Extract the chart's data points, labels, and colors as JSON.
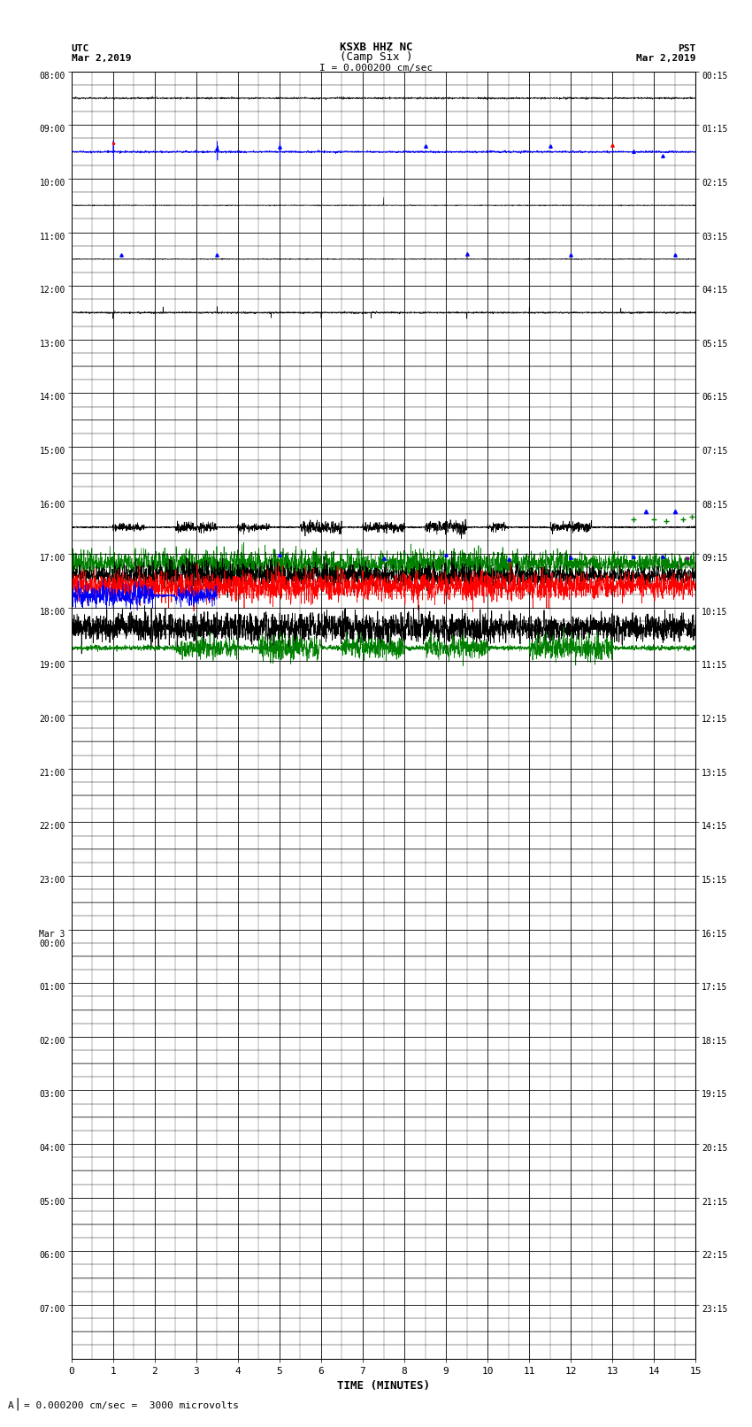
{
  "title_line1": "KSXB HHZ NC",
  "title_line2": "(Camp Six )",
  "scale_label": "I = 0.000200 cm/sec",
  "xlabel": "TIME (MINUTES)",
  "footer": "= 0.000200 cm/sec =  3000 microvolts",
  "left_times": [
    "08:00",
    "09:00",
    "10:00",
    "11:00",
    "12:00",
    "13:00",
    "14:00",
    "15:00",
    "16:00",
    "17:00",
    "18:00",
    "19:00",
    "20:00",
    "21:00",
    "22:00",
    "23:00",
    "Mar 3\n00:00",
    "01:00",
    "02:00",
    "03:00",
    "04:00",
    "05:00",
    "06:00",
    "07:00"
  ],
  "right_times": [
    "00:15",
    "01:15",
    "02:15",
    "03:15",
    "04:15",
    "05:15",
    "06:15",
    "07:15",
    "08:15",
    "09:15",
    "10:15",
    "11:15",
    "12:15",
    "13:15",
    "14:15",
    "15:15",
    "16:15",
    "17:15",
    "18:15",
    "19:15",
    "20:15",
    "21:15",
    "22:15",
    "23:15"
  ],
  "n_rows": 24,
  "sub_rows": 4,
  "bg_color": "#ffffff"
}
